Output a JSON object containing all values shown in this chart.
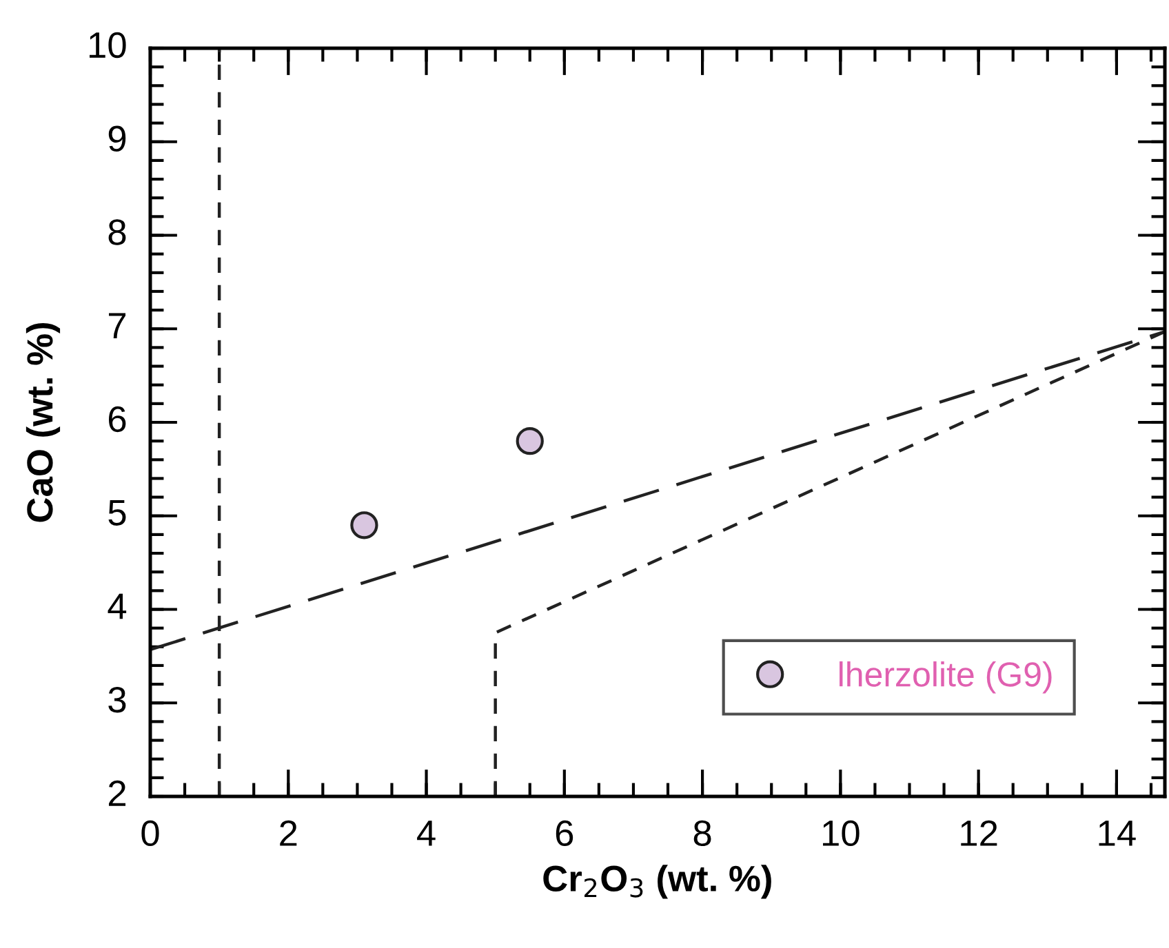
{
  "chart_data": {
    "type": "scatter",
    "xlabel": "Cr$_{2}$O$_{3}$ (wt. %)",
    "ylabel": "CaO (wt. %)",
    "xlim": [
      0,
      14.7
    ],
    "ylim": [
      2,
      10
    ],
    "xticks": [
      0,
      2,
      4,
      6,
      8,
      10,
      12,
      14
    ],
    "yticks": [
      2,
      3,
      4,
      5,
      6,
      7,
      8,
      9,
      10
    ],
    "grid": false,
    "legend": "bottom right",
    "marker": "circle",
    "series": [
      {
        "name": "lherzolite (G9)",
        "color": "#d9c6e0",
        "x": [
          3.1,
          5.5
        ],
        "values": [
          4.9,
          5.8
        ]
      },
      {
        "type": "line",
        "marker": "none",
        "line_style": "dashed",
        "color": "#222222",
        "x": [
          0,
          14.7
        ],
        "values": [
          3.57,
          6.97
        ]
      },
      {
        "type": "line",
        "marker": "none",
        "line_style": "dotted",
        "color": "#222222",
        "x": [
          5,
          5,
          14.7
        ],
        "values": [
          2,
          3.75,
          6.97
        ]
      }
    ],
    "ref_lines": [
      {
        "axis": "x",
        "value": 1,
        "line_style": "dotted",
        "color": "#222222"
      }
    ]
  }
}
